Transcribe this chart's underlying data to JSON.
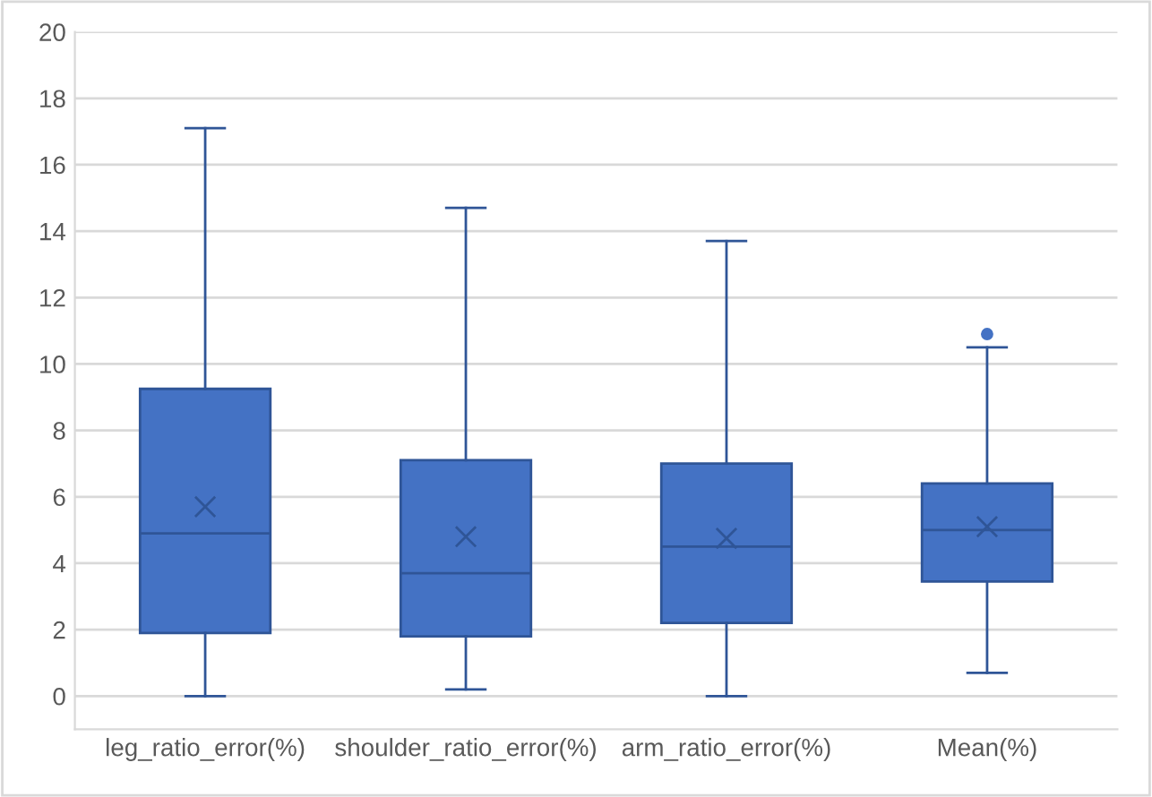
{
  "chart_data": {
    "type": "box",
    "categories": [
      "leg_ratio_error(%)",
      "shoulder_ratio_error(%)",
      "arm_ratio_error(%)",
      "Mean(%)"
    ],
    "boxes": [
      {
        "low": 0,
        "q1": 1.9,
        "median": 4.9,
        "q3": 9.25,
        "high": 17.1,
        "mean": 5.7
      },
      {
        "low": 0.2,
        "q1": 1.8,
        "median": 3.7,
        "q3": 7.1,
        "high": 14.7,
        "mean": 4.8
      },
      {
        "low": 0,
        "q1": 2.2,
        "median": 4.5,
        "q3": 7.0,
        "high": 13.7,
        "mean": 4.75
      },
      {
        "low": 0.7,
        "q1": 3.45,
        "median": 5.0,
        "q3": 6.4,
        "high": 10.5,
        "mean": 5.1,
        "outliers": [
          10.9
        ]
      }
    ],
    "color": "#4472c4",
    "ylim": [
      -1,
      20
    ],
    "yticks": [
      0,
      2,
      4,
      6,
      8,
      10,
      12,
      14,
      16,
      18,
      20
    ],
    "grid": "y",
    "legend": false
  }
}
